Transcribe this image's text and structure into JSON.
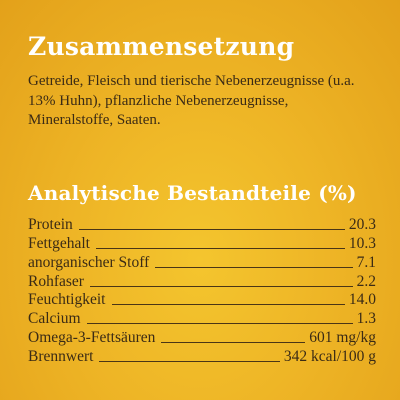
{
  "composition": {
    "title": "Zusammensetzung",
    "text": "Getreide, Fleisch und tierische Nebenerzeugnisse (u.a. 13% Huhn), pflanzliche Nebenerzeugnisse, Mineralstoffe, Saaten."
  },
  "analytics": {
    "title": "Analytische Bestandteile (%)",
    "rows": [
      {
        "label": "Protein",
        "value": "20.3"
      },
      {
        "label": "Fettgehalt",
        "value": "10.3"
      },
      {
        "label": "anorganischer Stoff",
        "value": "7.1"
      },
      {
        "label": "Rohfaser",
        "value": "2.2"
      },
      {
        "label": "Feuchtigkeit",
        "value": "14.0"
      },
      {
        "label": "Calcium",
        "value": "1.3"
      },
      {
        "label": "Omega-3-Fettsäuren",
        "value": "601 mg/kg"
      },
      {
        "label": "Brennwert",
        "value": "342 kcal/100 g"
      }
    ]
  }
}
